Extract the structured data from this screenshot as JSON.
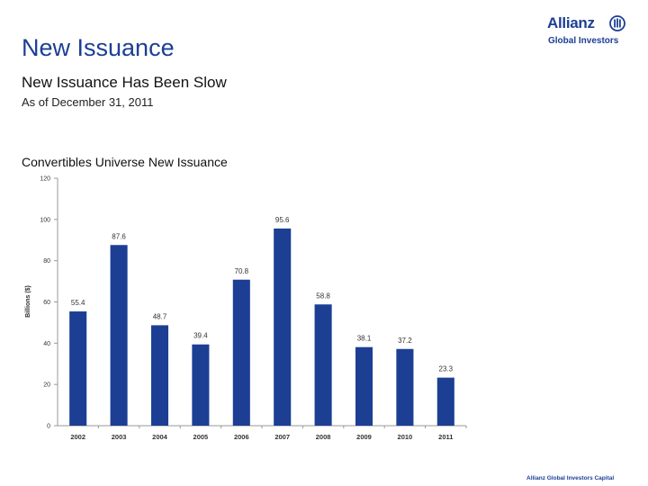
{
  "header": {
    "title": "New Issuance",
    "subtitle": "New Issuance Has Been Slow",
    "as_of": "As of December 31, 2011"
  },
  "logo": {
    "name": "Allianz",
    "tagline": "Global Investors"
  },
  "footer": {
    "text": "Allianz Global Investors Capital"
  },
  "colors": {
    "bar": "#1c3f94",
    "axis": "#999999",
    "brand": "#1c3f94"
  },
  "chart_data": {
    "type": "bar",
    "title": "Convertibles Universe New Issuance",
    "xlabel": "",
    "ylabel": "Billions ($)",
    "ylim": [
      0,
      120
    ],
    "yticks": [
      0,
      20,
      40,
      60,
      80,
      100,
      120
    ],
    "grid": false,
    "categories": [
      "2002",
      "2003",
      "2004",
      "2005",
      "2006",
      "2007",
      "2008",
      "2009",
      "2010",
      "2011"
    ],
    "values": [
      55.4,
      87.6,
      48.7,
      39.4,
      70.8,
      95.6,
      58.8,
      38.1,
      37.2,
      23.3
    ],
    "data_labels": [
      "55.4",
      "87.6",
      "48.7",
      "39.4",
      "70.8",
      "95.6",
      "58.8",
      "38.1",
      "37.2",
      "23.3"
    ]
  }
}
